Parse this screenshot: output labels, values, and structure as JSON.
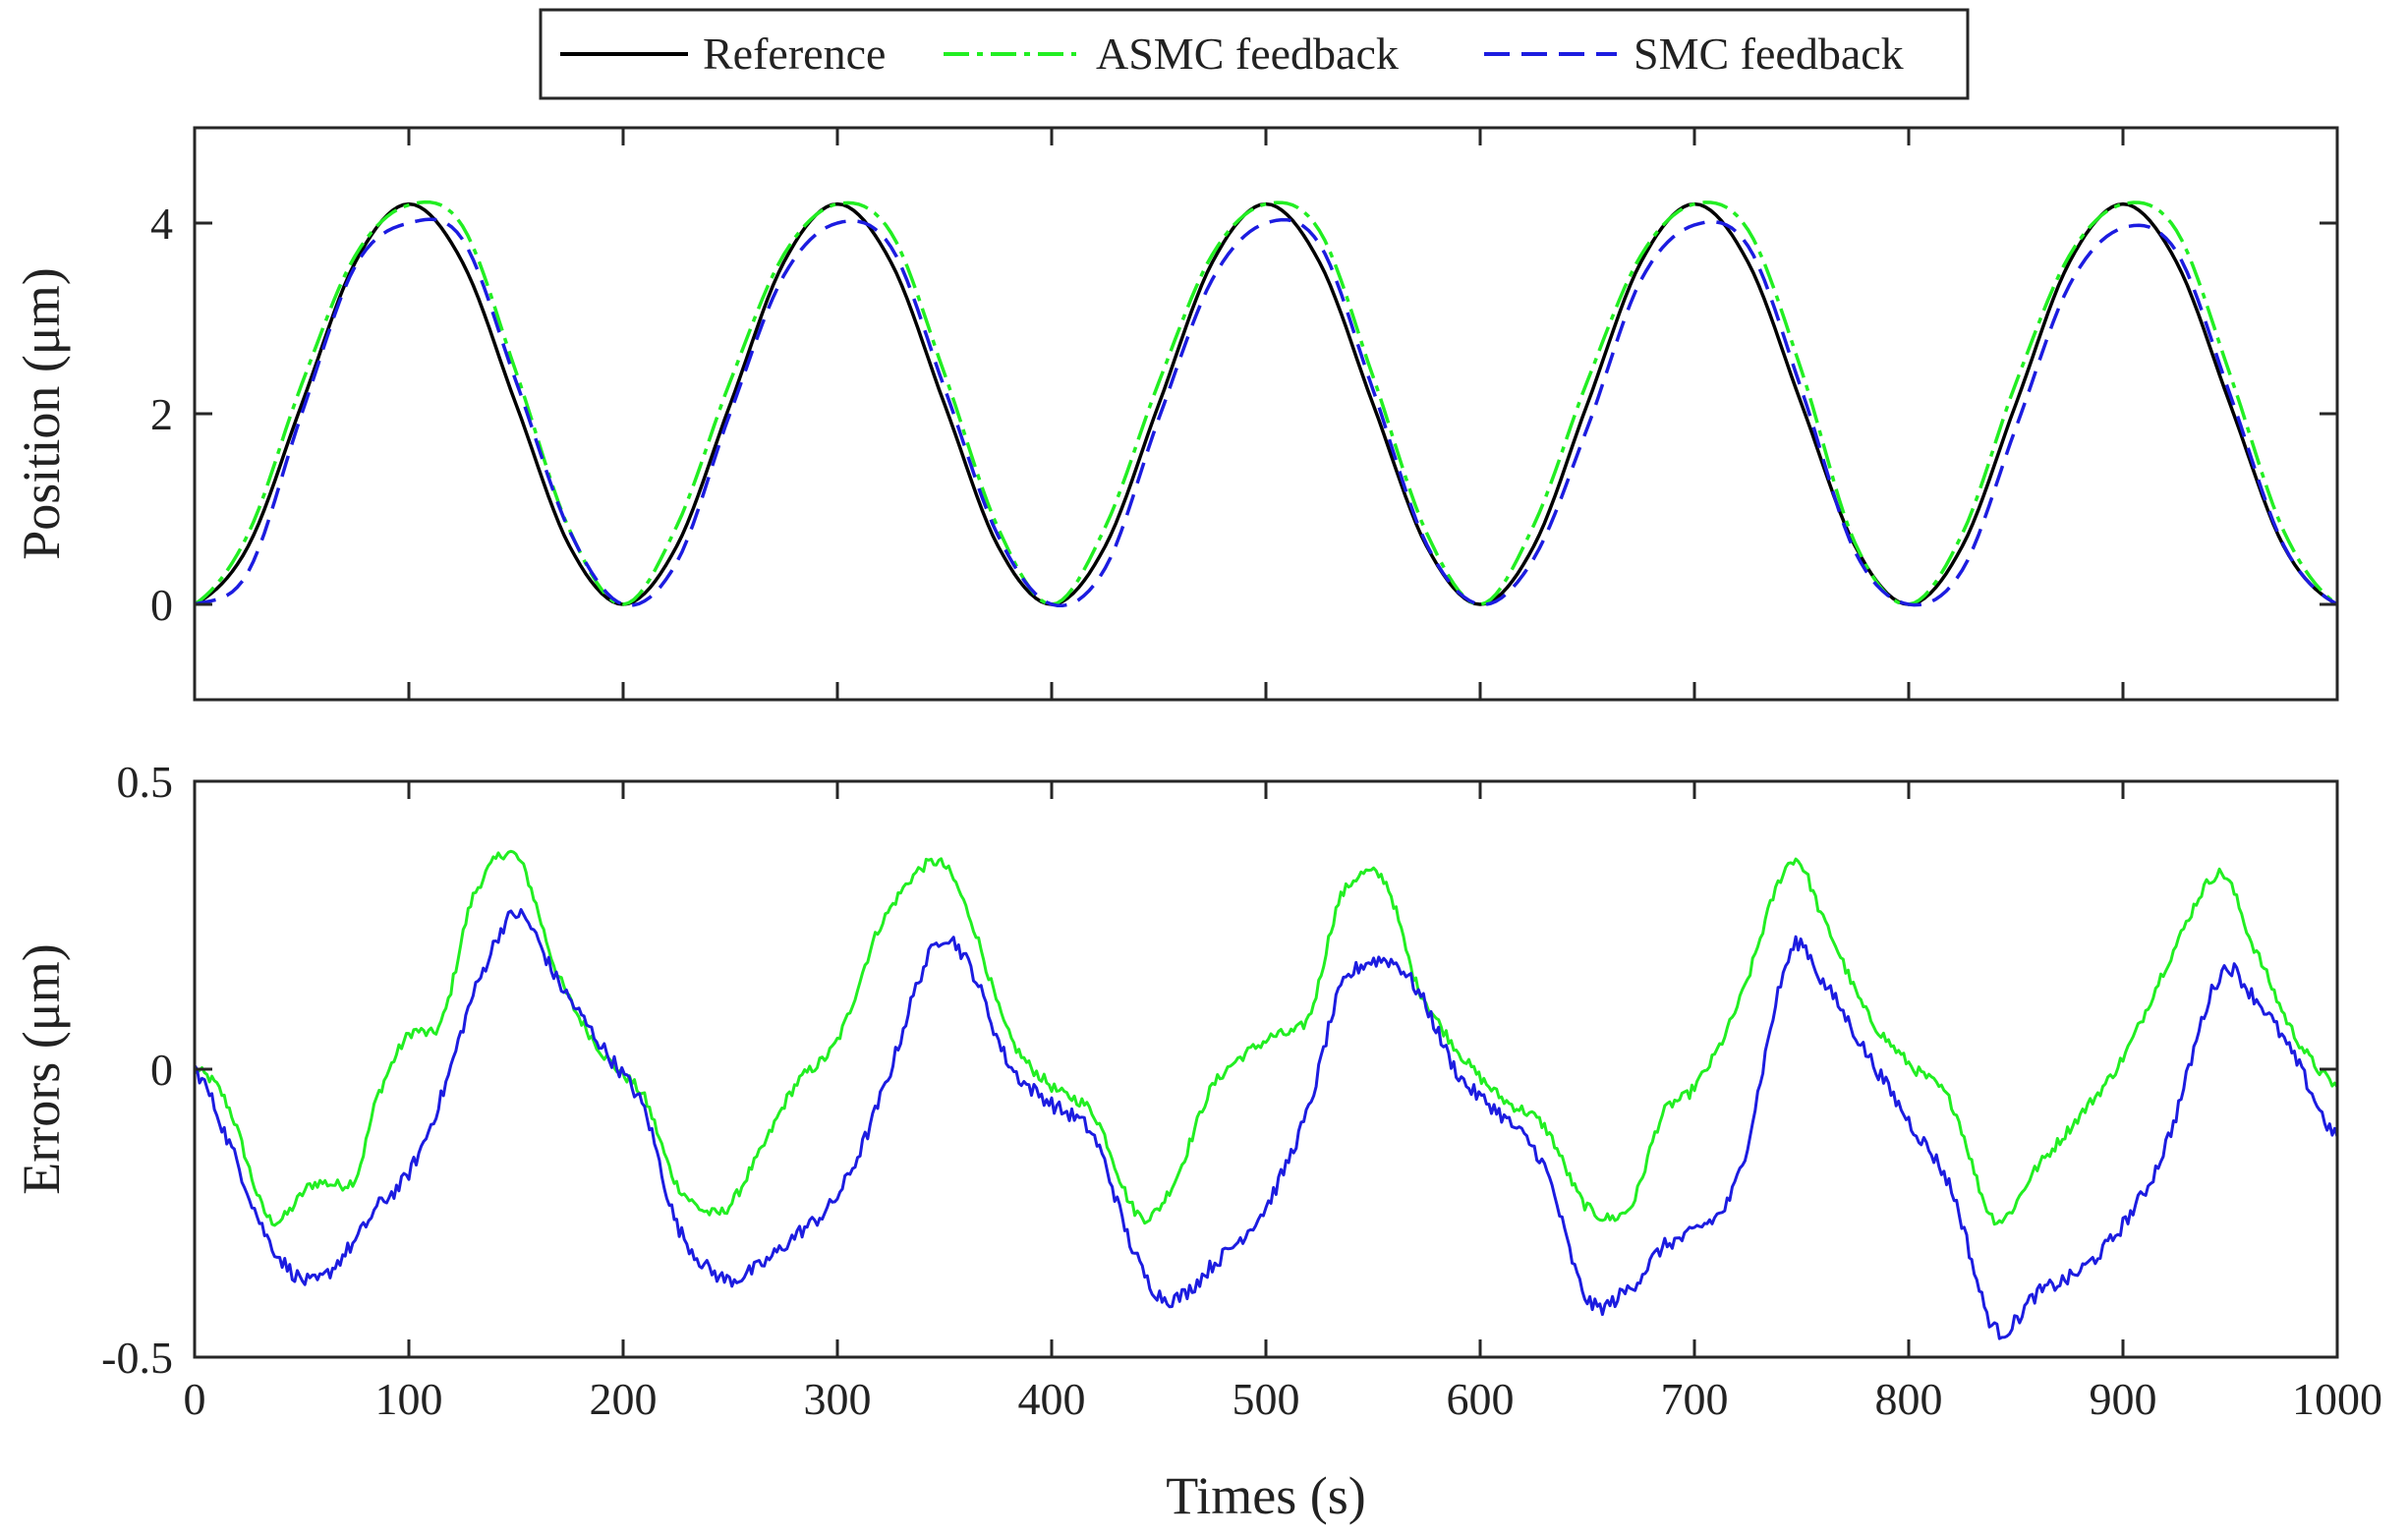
{
  "chart_data": [
    {
      "type": "line",
      "panel": "top",
      "title": "",
      "xlabel": "",
      "ylabel": "Position (μm)",
      "xlim": [
        0,
        1000
      ],
      "ylim": [
        -1,
        5
      ],
      "grid": false,
      "xticks": [
        0,
        100,
        200,
        300,
        400,
        500,
        600,
        700,
        800,
        900,
        1000
      ],
      "yticks": [
        0,
        2,
        4
      ],
      "ytick_labels": [
        "0",
        "2",
        "4"
      ],
      "legend_position": "top-center",
      "series": [
        {
          "name": "Reference",
          "color": "#000000",
          "style": "solid",
          "x": [
            0,
            25,
            50,
            75,
            100,
            125,
            150,
            175,
            200,
            225,
            250,
            275,
            300,
            325,
            350,
            375,
            400,
            425,
            450,
            475,
            500,
            525,
            550,
            575,
            600,
            625,
            650,
            675,
            700,
            725,
            750,
            775,
            800,
            825,
            850,
            875,
            900,
            925,
            950,
            975,
            1000
          ],
          "values": [
            0.0,
            0.61,
            2.1,
            3.59,
            4.2,
            3.59,
            2.1,
            0.61,
            0.0,
            0.61,
            2.1,
            3.59,
            4.2,
            3.59,
            2.1,
            0.61,
            0.0,
            0.61,
            2.1,
            3.59,
            4.2,
            3.59,
            2.1,
            0.61,
            0.0,
            0.61,
            2.1,
            3.59,
            4.2,
            3.59,
            2.1,
            0.61,
            0.0,
            0.61,
            2.1,
            3.59,
            4.2,
            3.59,
            2.1,
            0.61,
            0.0
          ]
        },
        {
          "name": "ASMC feedback",
          "color": "#22ee22",
          "style": "dashdot",
          "x": [
            0,
            25,
            50,
            75,
            100,
            125,
            150,
            175,
            200,
            225,
            250,
            275,
            300,
            325,
            350,
            375,
            400,
            425,
            450,
            475,
            500,
            525,
            550,
            575,
            600,
            625,
            650,
            675,
            700,
            725,
            750,
            775,
            800,
            825,
            850,
            875,
            900,
            925,
            950,
            975,
            1000
          ],
          "values": [
            0.0,
            0.74,
            2.31,
            3.66,
            4.19,
            3.97,
            2.44,
            0.78,
            0.0,
            0.82,
            2.34,
            3.67,
            4.2,
            3.9,
            2.42,
            0.8,
            0.0,
            0.81,
            2.33,
            3.67,
            4.2,
            3.92,
            2.39,
            0.75,
            0.0,
            0.83,
            2.34,
            3.66,
            4.2,
            3.93,
            2.45,
            0.64,
            0.0,
            0.74,
            2.32,
            3.66,
            4.2,
            3.92,
            2.41,
            0.77,
            0.0
          ]
        },
        {
          "name": "SMC feedback",
          "color": "#1c1ce0",
          "style": "dashed",
          "x": [
            0,
            25,
            50,
            75,
            100,
            125,
            150,
            175,
            200,
            225,
            250,
            275,
            300,
            325,
            350,
            375,
            400,
            425,
            450,
            475,
            500,
            525,
            550,
            575,
            600,
            625,
            650,
            675,
            700,
            725,
            750,
            775,
            800,
            825,
            850,
            875,
            900,
            925,
            950,
            975,
            1000
          ],
          "values": [
            0.0,
            0.34,
            2.0,
            3.55,
            4.0,
            3.83,
            2.34,
            0.77,
            0.0,
            0.44,
            2.01,
            3.45,
            4.0,
            3.75,
            2.27,
            0.72,
            0.0,
            0.38,
            1.95,
            3.41,
            4.0,
            3.78,
            2.25,
            0.63,
            0.0,
            0.48,
            1.85,
            3.4,
            3.98,
            3.76,
            2.25,
            0.55,
            0.0,
            0.36,
            1.85,
            3.35,
            3.95,
            3.7,
            2.2,
            0.62,
            0.0
          ]
        }
      ]
    },
    {
      "type": "line",
      "panel": "bottom",
      "title": "",
      "xlabel": "Times (s)",
      "ylabel": "Errors (μm)",
      "xlim": [
        0,
        1000
      ],
      "ylim": [
        -0.5,
        0.5
      ],
      "grid": false,
      "xticks": [
        0,
        100,
        200,
        300,
        400,
        500,
        600,
        700,
        800,
        900,
        1000
      ],
      "xtick_labels": [
        "0",
        "100",
        "200",
        "300",
        "400",
        "500",
        "600",
        "700",
        "800",
        "900",
        "1000"
      ],
      "yticks": [
        -0.5,
        0,
        0.5
      ],
      "ytick_labels": [
        "-0.5",
        "0",
        "0.5"
      ],
      "series": [
        {
          "name": "ASMC feedback",
          "color": "#22ee22",
          "style": "dashdot",
          "x": [
            0,
            15,
            35,
            55,
            75,
            85,
            100,
            115,
            130,
            150,
            170,
            190,
            210,
            225,
            245,
            260,
            280,
            300,
            320,
            345,
            360,
            380,
            400,
            420,
            440,
            455,
            475,
            500,
            520,
            535,
            555,
            570,
            590,
            610,
            630,
            650,
            670,
            685,
            700,
            720,
            745,
            760,
            780,
            800,
            820,
            840,
            860,
            880,
            900,
            920,
            945,
            960,
            980,
            1000
          ],
          "values": [
            0.0,
            -0.06,
            -0.26,
            -0.2,
            -0.19,
            -0.05,
            0.06,
            0.08,
            0.3,
            0.37,
            0.16,
            0.03,
            -0.05,
            -0.2,
            -0.25,
            -0.17,
            -0.03,
            0.05,
            0.25,
            0.36,
            0.28,
            0.06,
            -0.03,
            -0.08,
            -0.25,
            -0.21,
            -0.03,
            0.05,
            0.09,
            0.3,
            0.33,
            0.15,
            0.03,
            -0.05,
            -0.1,
            -0.24,
            -0.24,
            -0.08,
            -0.03,
            0.11,
            0.36,
            0.26,
            0.1,
            0.01,
            -0.06,
            -0.26,
            -0.17,
            -0.08,
            0.02,
            0.18,
            0.34,
            0.22,
            0.06,
            -0.03
          ]
        },
        {
          "name": "SMC feedback",
          "color": "#1c1ce0",
          "style": "dashed",
          "x": [
            0,
            15,
            35,
            55,
            75,
            85,
            100,
            115,
            130,
            150,
            170,
            190,
            210,
            225,
            245,
            260,
            280,
            300,
            320,
            345,
            360,
            380,
            400,
            420,
            440,
            455,
            475,
            500,
            520,
            535,
            555,
            570,
            590,
            610,
            630,
            650,
            670,
            685,
            700,
            720,
            745,
            760,
            780,
            800,
            820,
            840,
            860,
            880,
            900,
            920,
            945,
            960,
            980,
            1000
          ],
          "values": [
            0.0,
            -0.12,
            -0.3,
            -0.37,
            -0.3,
            -0.24,
            -0.18,
            -0.05,
            0.13,
            0.27,
            0.15,
            0.04,
            -0.07,
            -0.27,
            -0.36,
            -0.35,
            -0.29,
            -0.22,
            -0.05,
            0.21,
            0.19,
            0.01,
            -0.06,
            -0.12,
            -0.33,
            -0.4,
            -0.34,
            -0.24,
            -0.07,
            0.14,
            0.19,
            0.14,
            -0.01,
            -0.08,
            -0.17,
            -0.4,
            -0.38,
            -0.31,
            -0.28,
            -0.19,
            0.2,
            0.15,
            0.03,
            -0.09,
            -0.21,
            -0.45,
            -0.39,
            -0.35,
            -0.27,
            -0.13,
            0.16,
            0.13,
            0.02,
            -0.12
          ]
        }
      ]
    }
  ]
}
